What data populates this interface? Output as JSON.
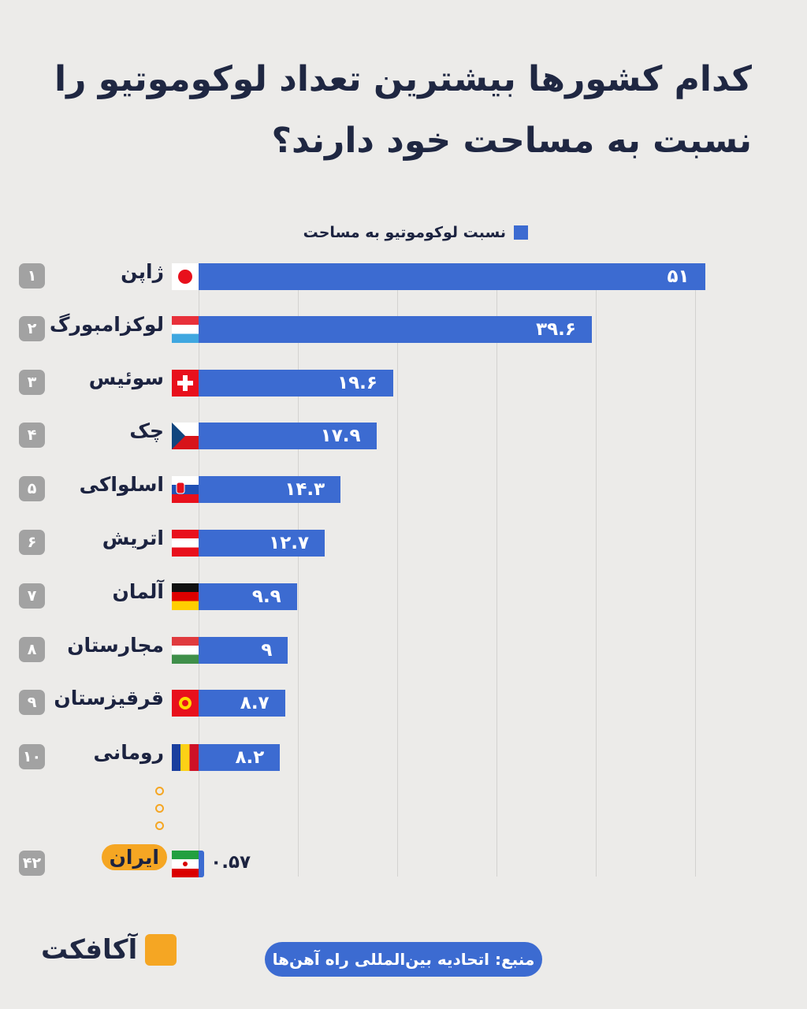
{
  "title": "کدام کشورها بیشترین تعداد لوکوموتیو را نسبت به مساحت خود دارند؟",
  "source": "منبع:  اتحادیه بین‌المللی راه آهن‌ها",
  "logo_text": "آکافکت",
  "colors": {
    "bar": "#3c6bd1",
    "highlight": "#f5a623",
    "rank_badge": "#a2a2a2"
  },
  "chart_data": {
    "type": "bar",
    "orientation": "horizontal",
    "title": "کدام کشورها بیشترین تعداد لوکوموتیو را نسبت به مساحت خود دارند؟",
    "legend": {
      "entries": [
        "نسبت لوکوموتیو به مساحت"
      ],
      "position": "top"
    },
    "grid": true,
    "xlim": [
      0,
      50
    ],
    "rows": [
      {
        "rank": "۱",
        "name": "ژاپن",
        "flag": "japan",
        "value": 51,
        "label": "۵۱"
      },
      {
        "rank": "۲",
        "name": "لوکزامبورگ",
        "flag": "luxembourg",
        "value": 39.6,
        "label": "۳۹.۶"
      },
      {
        "rank": "۳",
        "name": "سوئیس",
        "flag": "switzerland",
        "value": 19.6,
        "label": "۱۹.۶"
      },
      {
        "rank": "۴",
        "name": "چک",
        "flag": "czech",
        "value": 17.9,
        "label": "۱۷.۹"
      },
      {
        "rank": "۵",
        "name": "اسلواکی",
        "flag": "slovakia",
        "value": 14.3,
        "label": "۱۴.۳"
      },
      {
        "rank": "۶",
        "name": "اتریش",
        "flag": "austria",
        "value": 12.7,
        "label": "۱۲.۷"
      },
      {
        "rank": "۷",
        "name": "آلمان",
        "flag": "germany",
        "value": 9.9,
        "label": "۹.۹"
      },
      {
        "rank": "۸",
        "name": "مجارستان",
        "flag": "hungary",
        "value": 9,
        "label": "۹"
      },
      {
        "rank": "۹",
        "name": "قرقیزستان",
        "flag": "kyrgyzstan",
        "value": 8.7,
        "label": "۸.۷"
      },
      {
        "rank": "۱۰",
        "name": "رومانی",
        "flag": "romania",
        "value": 8.2,
        "label": "۸.۲"
      },
      {
        "rank": "۴۲",
        "name": "ایران",
        "flag": "iran",
        "value": 0.57,
        "label": "۰.۵۷",
        "highlight": true
      }
    ]
  }
}
